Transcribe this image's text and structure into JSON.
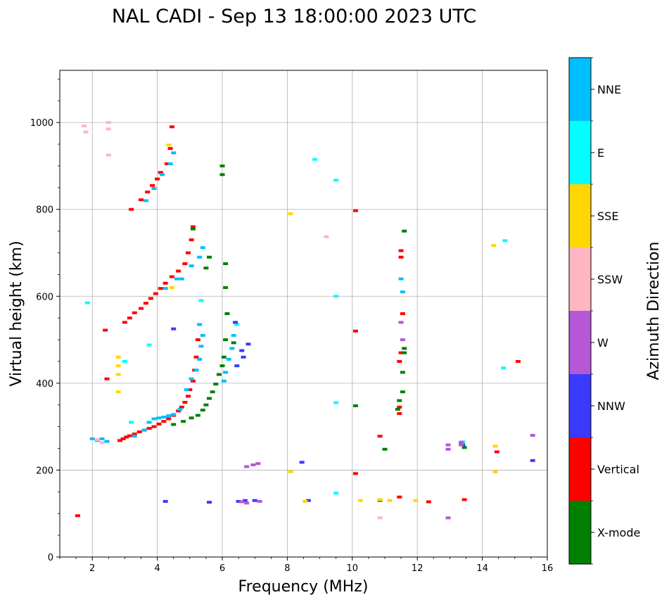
{
  "chart_data": {
    "type": "scatter",
    "title": "NAL CADI - Sep 13 18:00:00 2023 UTC",
    "xlabel": "Frequency (MHz)",
    "ylabel": "Virtual height (km)",
    "xlim": [
      1,
      16
    ],
    "ylim": [
      0,
      1120
    ],
    "xticks": [
      2,
      4,
      6,
      8,
      10,
      12,
      14,
      16
    ],
    "yticks": [
      0,
      200,
      400,
      600,
      800,
      1000
    ],
    "grid": true,
    "colorbar": {
      "label": "Azimuth Direction",
      "categories": [
        {
          "name": "X-mode",
          "color": "#008000"
        },
        {
          "name": "Vertical",
          "color": "#ff0000"
        },
        {
          "name": "NNW",
          "color": "#3a3aff"
        },
        {
          "name": "W",
          "color": "#b557d6"
        },
        {
          "name": "SSW",
          "color": "#ffb6c1"
        },
        {
          "name": "SSE",
          "color": "#ffd700"
        },
        {
          "name": "E",
          "color": "#00ffff"
        },
        {
          "name": "NNE",
          "color": "#00bfff"
        }
      ]
    },
    "series": [
      {
        "name": "Vertical",
        "points": [
          [
            2.85,
            268
          ],
          [
            2.95,
            272
          ],
          [
            3.05,
            276
          ],
          [
            3.15,
            279
          ],
          [
            3.3,
            283
          ],
          [
            3.45,
            288
          ],
          [
            3.6,
            292
          ],
          [
            3.75,
            296
          ],
          [
            3.9,
            300
          ],
          [
            4.05,
            306
          ],
          [
            4.2,
            312
          ],
          [
            4.35,
            318
          ],
          [
            4.5,
            326
          ],
          [
            4.65,
            336
          ],
          [
            4.75,
            345
          ],
          [
            4.85,
            356
          ],
          [
            4.95,
            370
          ],
          [
            5.0,
            385
          ],
          [
            5.1,
            405
          ],
          [
            5.15,
            430
          ],
          [
            5.2,
            460
          ],
          [
            5.25,
            500
          ],
          [
            3.0,
            540
          ],
          [
            3.15,
            550
          ],
          [
            3.3,
            562
          ],
          [
            3.5,
            572
          ],
          [
            3.65,
            584
          ],
          [
            3.8,
            595
          ],
          [
            3.95,
            606
          ],
          [
            4.1,
            618
          ],
          [
            4.25,
            630
          ],
          [
            4.45,
            645
          ],
          [
            4.65,
            658
          ],
          [
            4.85,
            675
          ],
          [
            4.95,
            700
          ],
          [
            5.05,
            730
          ],
          [
            5.1,
            760
          ],
          [
            3.2,
            800
          ],
          [
            3.5,
            822
          ],
          [
            3.7,
            840
          ],
          [
            3.85,
            855
          ],
          [
            4.0,
            870
          ],
          [
            4.1,
            885
          ],
          [
            4.3,
            905
          ],
          [
            4.4,
            940
          ],
          [
            4.45,
            990
          ],
          [
            2.4,
            522
          ],
          [
            2.45,
            410
          ],
          [
            1.55,
            95
          ],
          [
            11.45,
            330
          ],
          [
            11.45,
            345
          ],
          [
            11.45,
            450
          ],
          [
            11.5,
            470
          ],
          [
            11.55,
            560
          ],
          [
            11.5,
            690
          ],
          [
            11.5,
            705
          ],
          [
            10.1,
            520
          ],
          [
            10.1,
            797
          ],
          [
            10.1,
            192
          ],
          [
            10.85,
            278
          ],
          [
            12.35,
            127
          ],
          [
            13.45,
            132
          ],
          [
            14.45,
            242
          ],
          [
            15.1,
            450
          ],
          [
            11.45,
            138
          ]
        ]
      },
      {
        "name": "NNE",
        "points": [
          [
            2.0,
            272
          ],
          [
            2.15,
            268
          ],
          [
            2.3,
            272
          ],
          [
            2.45,
            266
          ],
          [
            3.3,
            278
          ],
          [
            3.6,
            292
          ],
          [
            3.75,
            310
          ],
          [
            3.9,
            318
          ],
          [
            4.05,
            320
          ],
          [
            4.2,
            322
          ],
          [
            4.35,
            325
          ],
          [
            4.5,
            328
          ],
          [
            4.7,
            340
          ],
          [
            4.9,
            385
          ],
          [
            5.05,
            410
          ],
          [
            5.2,
            430
          ],
          [
            5.3,
            455
          ],
          [
            5.35,
            485
          ],
          [
            5.4,
            510
          ],
          [
            5.3,
            535
          ],
          [
            4.25,
            618
          ],
          [
            4.6,
            640
          ],
          [
            4.75,
            640
          ],
          [
            5.05,
            670
          ],
          [
            5.3,
            690
          ],
          [
            5.4,
            712
          ],
          [
            3.65,
            820
          ],
          [
            3.9,
            848
          ],
          [
            4.15,
            880
          ],
          [
            4.4,
            905
          ],
          [
            4.5,
            930
          ],
          [
            6.05,
            405
          ],
          [
            6.1,
            425
          ],
          [
            6.2,
            455
          ],
          [
            6.3,
            480
          ],
          [
            6.35,
            510
          ],
          [
            11.55,
            610
          ],
          [
            11.5,
            640
          ]
        ]
      },
      {
        "name": "X-mode",
        "points": [
          [
            4.5,
            305
          ],
          [
            4.8,
            312
          ],
          [
            5.05,
            320
          ],
          [
            5.25,
            326
          ],
          [
            5.4,
            338
          ],
          [
            5.5,
            350
          ],
          [
            5.6,
            365
          ],
          [
            5.7,
            380
          ],
          [
            5.8,
            398
          ],
          [
            5.9,
            420
          ],
          [
            6.0,
            440
          ],
          [
            6.05,
            460
          ],
          [
            6.1,
            500
          ],
          [
            6.15,
            560
          ],
          [
            6.1,
            620
          ],
          [
            6.1,
            675
          ],
          [
            5.5,
            665
          ],
          [
            5.6,
            690
          ],
          [
            5.1,
            755
          ],
          [
            6.0,
            880
          ],
          [
            6.0,
            900
          ],
          [
            6.35,
            493
          ],
          [
            11.4,
            340
          ],
          [
            11.45,
            360
          ],
          [
            11.6,
            480
          ],
          [
            11.6,
            470
          ],
          [
            11.55,
            425
          ],
          [
            11.55,
            380
          ],
          [
            11.6,
            750
          ],
          [
            13.45,
            252
          ],
          [
            10.85,
            130
          ],
          [
            10.1,
            348
          ],
          [
            11.0,
            248
          ]
        ]
      },
      {
        "name": "E",
        "points": [
          [
            3.0,
            450
          ],
          [
            3.2,
            310
          ],
          [
            5.35,
            590
          ],
          [
            6.45,
            535
          ],
          [
            9.5,
            600
          ],
          [
            9.5,
            867
          ],
          [
            9.5,
            355
          ],
          [
            9.5,
            147
          ],
          [
            8.85,
            915
          ],
          [
            14.65,
            435
          ],
          [
            14.7,
            728
          ],
          [
            13.4,
            265
          ],
          [
            1.85,
            585
          ],
          [
            3.75,
            488
          ]
        ]
      },
      {
        "name": "NNW",
        "points": [
          [
            6.6,
            475
          ],
          [
            6.65,
            460
          ],
          [
            6.45,
            440
          ],
          [
            6.8,
            490
          ],
          [
            4.5,
            525
          ],
          [
            4.25,
            128
          ],
          [
            5.6,
            126
          ],
          [
            6.5,
            128
          ],
          [
            6.7,
            130
          ],
          [
            7.0,
            130
          ],
          [
            8.65,
            130
          ],
          [
            8.45,
            218
          ],
          [
            13.4,
            258
          ],
          [
            15.55,
            222
          ],
          [
            6.4,
            540
          ]
        ]
      },
      {
        "name": "W",
        "points": [
          [
            6.75,
            208
          ],
          [
            6.95,
            212
          ],
          [
            7.1,
            215
          ],
          [
            6.6,
            127
          ],
          [
            6.75,
            124
          ],
          [
            7.15,
            128
          ],
          [
            12.95,
            258
          ],
          [
            12.95,
            248
          ],
          [
            13.35,
            258
          ],
          [
            13.35,
            264
          ],
          [
            12.95,
            90
          ],
          [
            15.55,
            280
          ],
          [
            11.55,
            500
          ],
          [
            11.5,
            540
          ]
        ]
      },
      {
        "name": "SSW",
        "points": [
          [
            2.5,
            1000
          ],
          [
            2.5,
            985
          ],
          [
            2.5,
            925
          ],
          [
            9.2,
            737
          ],
          [
            10.85,
            90
          ],
          [
            1.75,
            992
          ],
          [
            1.8,
            978
          ],
          [
            2.15,
            270
          ],
          [
            2.3,
            263
          ]
        ]
      },
      {
        "name": "SSE",
        "points": [
          [
            2.8,
            460
          ],
          [
            2.8,
            440
          ],
          [
            2.8,
            420
          ],
          [
            2.8,
            380
          ],
          [
            8.1,
            790
          ],
          [
            8.1,
            196
          ],
          [
            8.55,
            128
          ],
          [
            10.25,
            130
          ],
          [
            10.85,
            132
          ],
          [
            11.15,
            130
          ],
          [
            11.95,
            130
          ],
          [
            14.35,
            717
          ],
          [
            14.4,
            255
          ],
          [
            14.4,
            196
          ],
          [
            4.35,
            948
          ],
          [
            4.45,
            620
          ]
        ]
      }
    ]
  }
}
